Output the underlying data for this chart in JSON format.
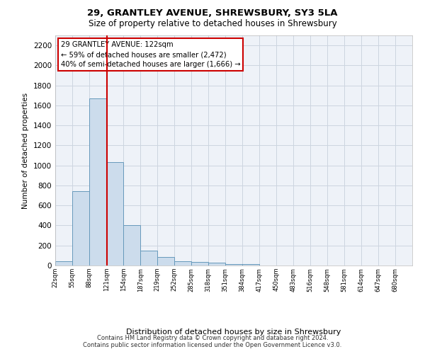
{
  "title1": "29, GRANTLEY AVENUE, SHREWSBURY, SY3 5LA",
  "title2": "Size of property relative to detached houses in Shrewsbury",
  "xlabel": "Distribution of detached houses by size in Shrewsbury",
  "ylabel": "Number of detached properties",
  "bar_values": [
    45,
    745,
    1670,
    1035,
    400,
    150,
    85,
    45,
    35,
    25,
    15,
    15,
    0,
    0,
    0,
    0,
    0,
    0,
    0,
    0
  ],
  "bin_labels": [
    "22sqm",
    "55sqm",
    "88sqm",
    "121sqm",
    "154sqm",
    "187sqm",
    "219sqm",
    "252sqm",
    "285sqm",
    "318sqm",
    "351sqm",
    "384sqm",
    "417sqm",
    "450sqm",
    "483sqm",
    "516sqm",
    "548sqm",
    "581sqm",
    "614sqm",
    "647sqm",
    "680sqm"
  ],
  "bar_color": "#ccdcec",
  "bar_edge_color": "#6699bb",
  "property_line_x": 122,
  "property_line_color": "#cc0000",
  "annotation_box_text": "29 GRANTLEY AVENUE: 122sqm\n← 59% of detached houses are smaller (2,472)\n40% of semi-detached houses are larger (1,666) →",
  "annotation_box_edge_color": "#cc0000",
  "ylim": [
    0,
    2300
  ],
  "yticks": [
    0,
    200,
    400,
    600,
    800,
    1000,
    1200,
    1400,
    1600,
    1800,
    2000,
    2200
  ],
  "footer_text": "Contains HM Land Registry data © Crown copyright and database right 2024.\nContains public sector information licensed under the Open Government Licence v3.0.",
  "bg_color": "#eef2f8",
  "grid_color": "#ccd5e0"
}
